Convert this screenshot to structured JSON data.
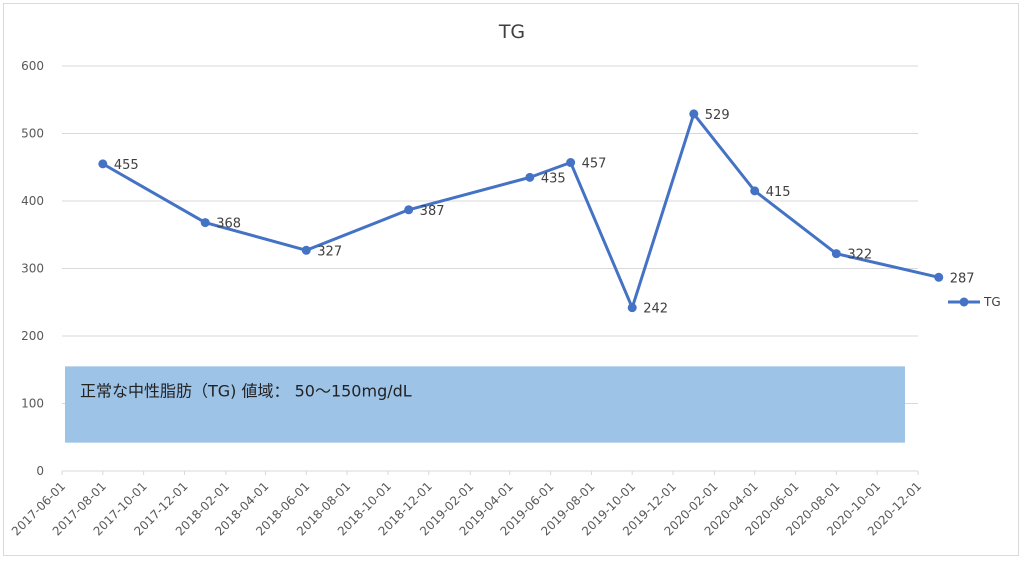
{
  "chart_data": {
    "type": "line",
    "title": "TG",
    "xlabel": "",
    "ylabel": "",
    "ylim": [
      0,
      600
    ],
    "yticks": [
      0,
      100,
      200,
      300,
      400,
      500,
      600
    ],
    "grid": true,
    "legend_position": "right",
    "x_tick_labels": [
      "2017-06-01",
      "2017-08-01",
      "2017-10-01",
      "2017-12-01",
      "2018-02-01",
      "2018-04-01",
      "2018-06-01",
      "2018-08-01",
      "2018-10-01",
      "2018-12-01",
      "2019-02-01",
      "2019-04-01",
      "2019-06-01",
      "2019-08-01",
      "2019-10-01",
      "2019-12-01",
      "2020-02-01",
      "2020-04-01",
      "2020-06-01",
      "2020-08-01",
      "2020-10-01",
      "2020-12-01"
    ],
    "x_range": [
      "2017-06-01",
      "2020-12-01"
    ],
    "series": [
      {
        "name": "TG",
        "color": "#4472c4",
        "points": [
          {
            "x": "2017-08-01",
            "y": 455
          },
          {
            "x": "2018-01-01",
            "y": 368
          },
          {
            "x": "2018-06-01",
            "y": 327
          },
          {
            "x": "2018-11-01",
            "y": 387
          },
          {
            "x": "2019-05-01",
            "y": 435
          },
          {
            "x": "2019-07-01",
            "y": 457
          },
          {
            "x": "2019-10-01",
            "y": 242
          },
          {
            "x": "2020-01-01",
            "y": 529
          },
          {
            "x": "2020-04-01",
            "y": 415
          },
          {
            "x": "2020-08-01",
            "y": 322
          },
          {
            "x": "2021-01-01",
            "y": 287
          }
        ]
      }
    ],
    "annotation": {
      "text": "正常な中性脂肪（TG) 値域： 50～150mg/dL",
      "y_from": 50,
      "y_to": 150,
      "color": "#9dc3e6"
    }
  }
}
